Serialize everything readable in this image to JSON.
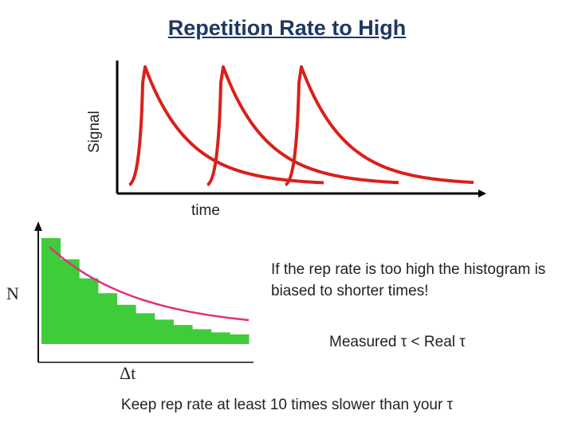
{
  "title": "Repetition Rate to High",
  "signal_plot": {
    "ylabel": "Signal",
    "xlabel": "time",
    "line_color": "#d9201a",
    "pulse_count": 3
  },
  "histogram": {
    "ylabel": "N",
    "xlabel": "Δt",
    "bar_color": "#3fcc3a",
    "curve_color": "#e0307a",
    "bar_levels": [
      1.0,
      0.8,
      0.62,
      0.48,
      0.37,
      0.29,
      0.23,
      0.18,
      0.14,
      0.11,
      0.09
    ]
  },
  "note": "If the rep rate is too high the histogram is biased to shorter times!",
  "measured_text": "Measured τ < Real τ",
  "footer": "Keep rep rate at least 10 times slower than your τ"
}
